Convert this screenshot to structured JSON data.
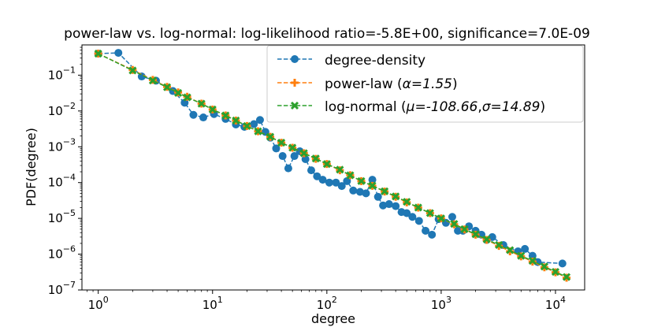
{
  "chart_data": {
    "type": "line",
    "title": "power-law vs. log-normal: log-likelihood ratio=-5.8E+00, significance=7.0E-09",
    "xlabel": "degree",
    "ylabel": "PDF(degree)",
    "xscale": "log",
    "yscale": "log",
    "xlim": [
      0.72,
      18000
    ],
    "ylim": [
      1e-07,
      0.7
    ],
    "x_ticks": [
      {
        "value": 1,
        "base": "10",
        "exp": "0"
      },
      {
        "value": 10,
        "base": "10",
        "exp": "1"
      },
      {
        "value": 100,
        "base": "10",
        "exp": "2"
      },
      {
        "value": 1000,
        "base": "10",
        "exp": "3"
      },
      {
        "value": 10000,
        "base": "10",
        "exp": "4"
      }
    ],
    "y_ticks": [
      {
        "value": 0.1,
        "base": "10",
        "exp": "−1"
      },
      {
        "value": 0.01,
        "base": "10",
        "exp": "−2"
      },
      {
        "value": 0.001,
        "base": "10",
        "exp": "−3"
      },
      {
        "value": 0.0001,
        "base": "10",
        "exp": "−4"
      },
      {
        "value": 1e-05,
        "base": "10",
        "exp": "−5"
      },
      {
        "value": 1e-06,
        "base": "10",
        "exp": "−6"
      },
      {
        "value": 1e-07,
        "base": "10",
        "exp": "−7"
      }
    ],
    "legend_position": "top-right",
    "series": [
      {
        "name": "degree-density",
        "legend_label": "degree-density",
        "color": "#1f77b4",
        "marker": "circle",
        "x": [
          1,
          1.5,
          2.4,
          3.2,
          4.5,
          5.7,
          6.8,
          8.3,
          10.3,
          13,
          16,
          19,
          23,
          26,
          29,
          32,
          36,
          41,
          46,
          52,
          58,
          65,
          73,
          82,
          92,
          105,
          120,
          135,
          150,
          170,
          195,
          220,
          250,
          280,
          310,
          350,
          400,
          450,
          500,
          560,
          640,
          730,
          830,
          950,
          1100,
          1250,
          1400,
          1550,
          1750,
          2000,
          2250,
          2500,
          2800,
          3500,
          4700,
          5400,
          6300,
          7000,
          11500
        ],
        "y": [
          0.4,
          0.42,
          0.092,
          0.07,
          0.036,
          0.017,
          0.0078,
          0.0066,
          0.0082,
          0.006,
          0.0042,
          0.0036,
          0.0043,
          0.0056,
          0.0026,
          0.0018,
          0.0009,
          0.00055,
          0.00025,
          0.00055,
          0.00075,
          0.00045,
          0.00022,
          0.00015,
          0.00012,
          0.0001,
          0.0001,
          8e-05,
          0.00011,
          6e-05,
          5.5e-05,
          5e-05,
          0.00012,
          4e-05,
          2.3e-05,
          2.5e-05,
          2.2e-05,
          1.5e-05,
          1.4e-05,
          1.1e-05,
          8.5e-06,
          4.5e-06,
          3.5e-06,
          9.5e-06,
          7.5e-06,
          1.1e-05,
          4.5e-06,
          4.5e-06,
          6e-06,
          4.5e-06,
          3.5e-06,
          2.5e-06,
          3e-06,
          1.8e-06,
          1.2e-06,
          1.4e-06,
          9e-07,
          6e-07,
          5.5e-07
        ]
      },
      {
        "name": "power-law",
        "legend_label_prefix": "power-law (",
        "legend_param_1": "α=1.55",
        "legend_label_suffix": ")",
        "color": "#ff7f0e",
        "marker": "plus",
        "x": [
          1,
          2,
          3,
          4,
          5,
          6,
          8,
          10,
          13,
          16,
          20,
          25,
          32,
          40,
          50,
          63,
          80,
          100,
          130,
          160,
          200,
          250,
          320,
          400,
          500,
          630,
          800,
          1000,
          1300,
          1600,
          2000,
          2500,
          3200,
          4000,
          5000,
          6300,
          8000,
          10000,
          12500
        ],
        "y": [
          0.4,
          0.14,
          0.074,
          0.047,
          0.033,
          0.025,
          0.016,
          0.011,
          0.0075,
          0.0054,
          0.0038,
          0.0027,
          0.0019,
          0.0013,
          0.00094,
          0.00066,
          0.00046,
          0.00033,
          0.00022,
          0.00016,
          0.00011,
          8.1e-05,
          5.6e-05,
          4e-05,
          2.8e-05,
          2e-05,
          1.4e-05,
          1e-05,
          6.8e-06,
          4.9e-06,
          3.5e-06,
          2.5e-06,
          1.7e-06,
          1.2e-06,
          8.7e-07,
          6.2e-07,
          4.3e-07,
          3.1e-07,
          2.2e-07
        ]
      },
      {
        "name": "log-normal",
        "legend_label_prefix": "log-normal (",
        "legend_param_1": "μ=-108.66",
        "legend_separator": ",",
        "legend_param_2": "σ=14.89",
        "legend_label_suffix": ")",
        "color": "#2ca02c",
        "marker": "x",
        "x": [
          1,
          2,
          3,
          4,
          5,
          6,
          8,
          10,
          13,
          16,
          20,
          25,
          32,
          40,
          50,
          63,
          80,
          100,
          130,
          160,
          200,
          250,
          320,
          400,
          500,
          630,
          800,
          1000,
          1300,
          1600,
          2000,
          2500,
          3200,
          4000,
          5000,
          6300,
          8000,
          10000,
          12500
        ],
        "y": [
          0.4,
          0.135,
          0.071,
          0.046,
          0.032,
          0.024,
          0.016,
          0.011,
          0.0075,
          0.0054,
          0.0038,
          0.0027,
          0.0019,
          0.0013,
          0.00094,
          0.00066,
          0.00047,
          0.00033,
          0.00023,
          0.00016,
          0.00011,
          8.2e-05,
          5.7e-05,
          4.1e-05,
          2.9e-05,
          2e-05,
          1.4e-05,
          1e-05,
          7e-06,
          5e-06,
          3.6e-06,
          2.6e-06,
          1.8e-06,
          1.3e-06,
          9e-07,
          6.5e-07,
          4.5e-07,
          3.2e-07,
          2.3e-07
        ]
      }
    ]
  }
}
